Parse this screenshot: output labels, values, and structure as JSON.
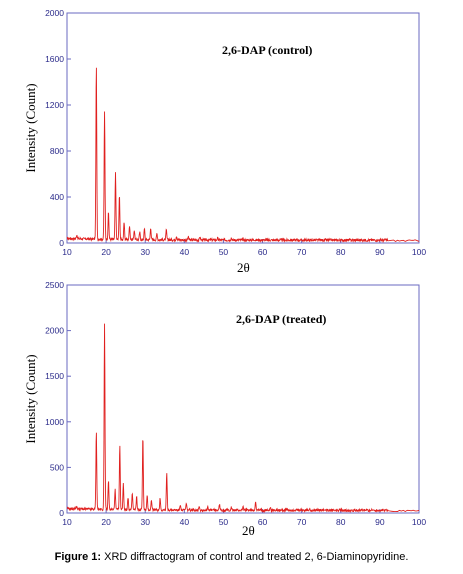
{
  "caption": {
    "label": "Figure 1:",
    "text": "XRD diffractogram of control and treated 2, 6-Diaminopyridine."
  },
  "colors": {
    "series": "#e0201f",
    "axis": "#3a3aa0",
    "tick_text": "#2a2a8a"
  },
  "chart_data": [
    {
      "type": "line",
      "title": "2,6-DAP (control)",
      "xlabel": "2θ",
      "ylabel": "Intensity (Count)",
      "xlim": [
        10,
        100
      ],
      "ylim": [
        0,
        2000
      ],
      "x_ticks": [
        "10",
        "20",
        "30",
        "40",
        "50",
        "60",
        "70",
        "80",
        "90",
        "100"
      ],
      "y_ticks": [
        "0",
        "400",
        "800",
        "1200",
        "1600",
        "2000"
      ],
      "grid": false,
      "series": [
        {
          "peaks_2theta": [
            12.5,
            17.5,
            19.6,
            20.6,
            22.4,
            23.4,
            24.6,
            26.0,
            27.2,
            28.6,
            29.8,
            31.4,
            33.0,
            35.4,
            38.0,
            41.0,
            44.0,
            48.5,
            52.0,
            55.0,
            58.0,
            62.0
          ],
          "peaks_count": [
            60,
            1540,
            1140,
            260,
            600,
            410,
            170,
            150,
            110,
            90,
            120,
            130,
            80,
            110,
            60,
            50,
            50,
            40,
            45,
            35,
            30,
            25
          ],
          "baseline": 25
        }
      ]
    },
    {
      "type": "line",
      "title": "2,6-DAP (treated)",
      "xlabel": "2θ",
      "ylabel": "Intensity (Count)",
      "xlim": [
        10,
        100
      ],
      "ylim": [
        0,
        2500
      ],
      "x_ticks": [
        "10",
        "20",
        "30",
        "40",
        "50",
        "60",
        "70",
        "80",
        "90",
        "100"
      ],
      "y_ticks": [
        "0",
        "500",
        "1000",
        "1500",
        "2000",
        "2500"
      ],
      "grid": false,
      "series": [
        {
          "peaks_2theta": [
            12.4,
            17.5,
            19.6,
            20.6,
            22.3,
            23.5,
            24.4,
            25.6,
            26.7,
            27.8,
            29.4,
            30.5,
            31.6,
            33.8,
            35.5,
            39.0,
            40.5,
            43.8,
            46.0,
            49.0,
            52.0,
            55.0,
            58.2,
            62.0,
            66.0,
            72.0,
            80.0
          ],
          "peaks_count": [
            60,
            880,
            2070,
            350,
            250,
            730,
            320,
            160,
            210,
            170,
            840,
            180,
            140,
            160,
            430,
            90,
            100,
            80,
            70,
            90,
            60,
            70,
            120,
            55,
            45,
            40,
            35
          ],
          "baseline": 30
        }
      ]
    }
  ]
}
